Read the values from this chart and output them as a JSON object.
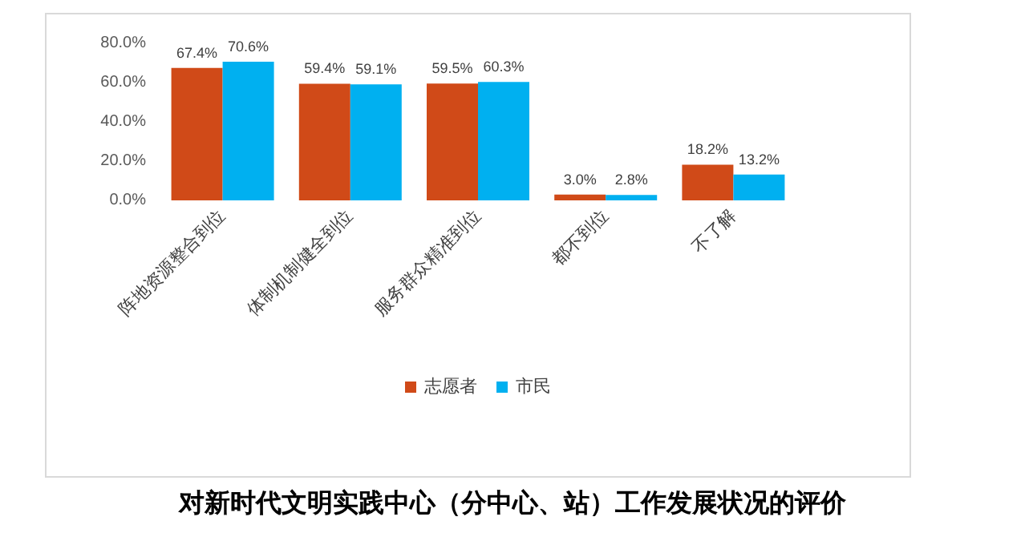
{
  "chart_data": {
    "type": "bar",
    "title": "对新时代文明实践中心（分中心、站）工作发展状况的评价",
    "categories": [
      "阵地资源整合到位",
      "体制机制健全到位",
      "服务群众精准到位",
      "都不到位",
      "不了解"
    ],
    "series": [
      {
        "name": "志愿者",
        "color": "#d04a18",
        "values": [
          67.4,
          59.4,
          59.5,
          3.0,
          18.2
        ],
        "value_labels": [
          "67.4%",
          "59.4%",
          "59.5%",
          "3.0%",
          "18.2%"
        ]
      },
      {
        "name": "市民",
        "color": "#00b0f0",
        "values": [
          70.6,
          59.1,
          60.3,
          2.8,
          13.2
        ],
        "value_labels": [
          "70.6%",
          "59.1%",
          "60.3%",
          "2.8%",
          "13.2%"
        ]
      }
    ],
    "ylim": [
      0,
      80
    ],
    "yticks": [
      {
        "value": 0,
        "label": "0.0%"
      },
      {
        "value": 20,
        "label": "20.0%"
      },
      {
        "value": 40,
        "label": "40.0%"
      },
      {
        "value": 60,
        "label": "60.0%"
      },
      {
        "value": 80,
        "label": "80.0%"
      }
    ],
    "grid": false,
    "legend": "bottom"
  }
}
